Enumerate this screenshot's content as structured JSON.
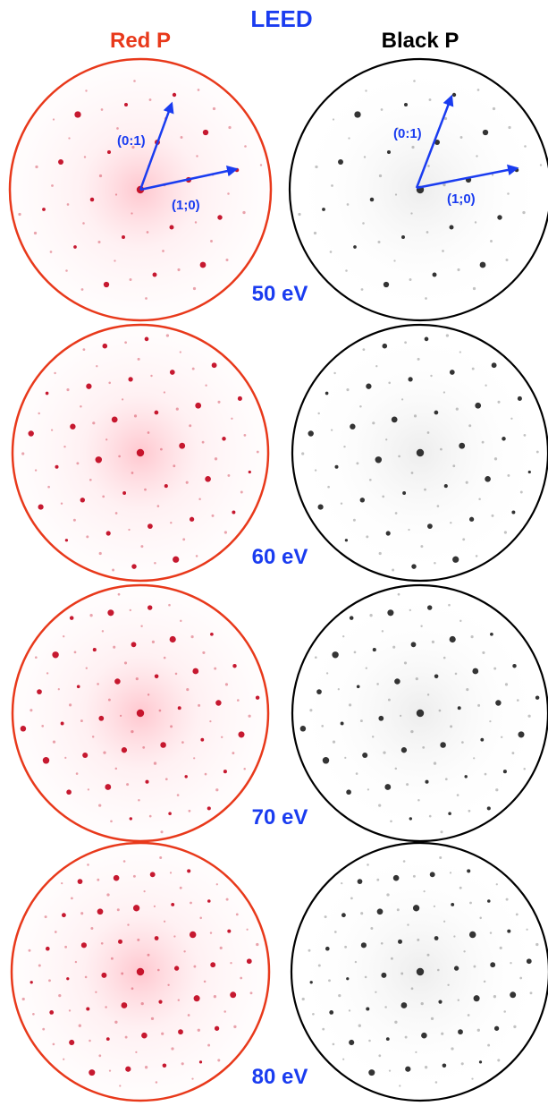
{
  "header": {
    "title": "LEED",
    "left_label": "Red P",
    "right_label": "Black P"
  },
  "colors": {
    "title": "#1a3cf0",
    "red_ring": "#e8391b",
    "red_spot": "#c0001a",
    "black_ring": "#000000",
    "black_spot": "#111111",
    "energy_label": "#1a3cf0",
    "vector": "#1a3cf0"
  },
  "vectors": {
    "a": "(0:1)",
    "b": "(1;0)"
  },
  "panels": [
    {
      "energy": "50 eV"
    },
    {
      "energy": "60 eV"
    },
    {
      "energy": "70 eV"
    },
    {
      "energy": "80 eV"
    }
  ]
}
